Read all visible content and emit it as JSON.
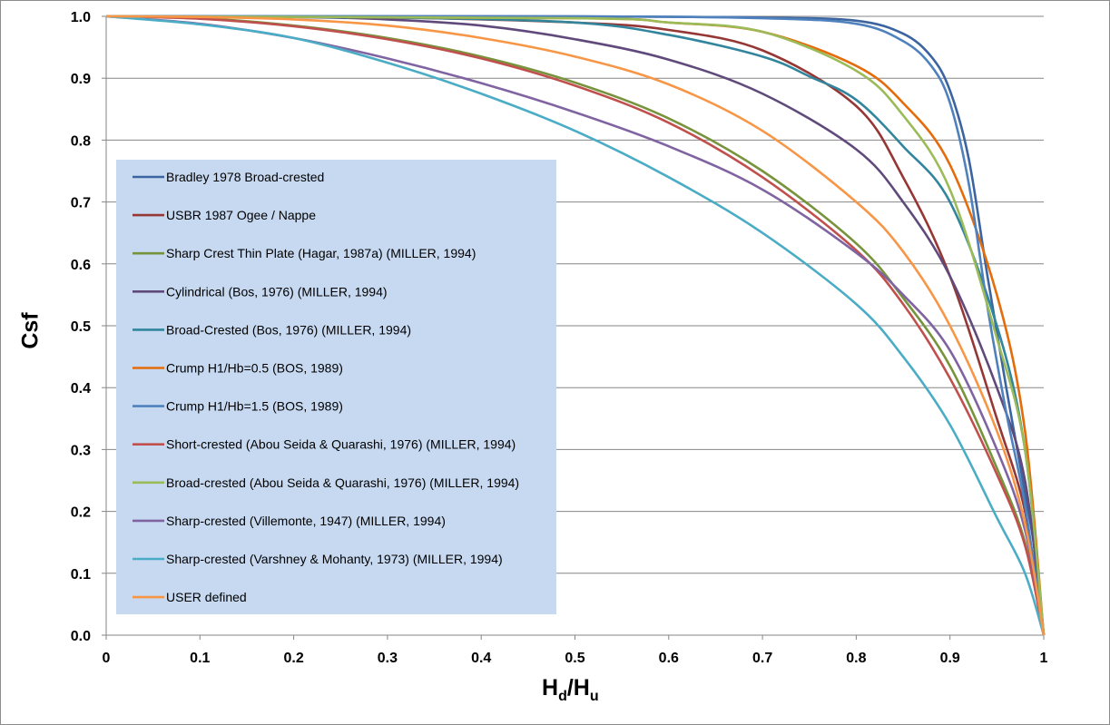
{
  "chart_data": {
    "type": "line",
    "title": "",
    "ylabel": "Csf",
    "xlabel": {
      "base1": "H",
      "sub1": "d",
      "sep": "/",
      "base2": "H",
      "sub2": "u"
    },
    "xlim": [
      0,
      1
    ],
    "ylim": [
      0,
      1
    ],
    "xticks": [
      "0",
      "0.1",
      "0.2",
      "0.3",
      "0.4",
      "0.5",
      "0.6",
      "0.7",
      "0.8",
      "0.9",
      "1"
    ],
    "yticks": [
      "0.0",
      "0.1",
      "0.2",
      "0.3",
      "0.4",
      "0.5",
      "0.6",
      "0.7",
      "0.8",
      "0.9",
      "1.0"
    ],
    "grid": "horizontal",
    "legend_placement": "center-left",
    "legend_bg": "#C6D9F1",
    "series": [
      {
        "name": "Bradley 1978 Broad-crested",
        "color": "#3B64A0",
        "points": [
          [
            0,
            1
          ],
          [
            0.5,
            1
          ],
          [
            0.7,
            0.998
          ],
          [
            0.8,
            0.993
          ],
          [
            0.85,
            0.972
          ],
          [
            0.88,
            0.935
          ],
          [
            0.9,
            0.88
          ],
          [
            0.92,
            0.77
          ],
          [
            0.94,
            0.58
          ],
          [
            0.96,
            0.4
          ],
          [
            0.98,
            0.23
          ],
          [
            0.99,
            0.14
          ],
          [
            1,
            0
          ]
        ]
      },
      {
        "name": "USBR 1987 Ogee / Nappe",
        "color": "#953735",
        "points": [
          [
            0,
            1
          ],
          [
            0.3,
            0.998
          ],
          [
            0.5,
            0.99
          ],
          [
            0.6,
            0.978
          ],
          [
            0.7,
            0.945
          ],
          [
            0.8,
            0.855
          ],
          [
            0.85,
            0.74
          ],
          [
            0.9,
            0.58
          ],
          [
            0.95,
            0.35
          ],
          [
            0.98,
            0.2
          ],
          [
            1,
            0
          ]
        ]
      },
      {
        "name": "Sharp Crest Thin Plate (Hagar, 1987a) (MILLER, 1994)",
        "color": "#77933C",
        "points": [
          [
            0,
            1
          ],
          [
            0.1,
            0.997
          ],
          [
            0.2,
            0.985
          ],
          [
            0.3,
            0.965
          ],
          [
            0.4,
            0.935
          ],
          [
            0.5,
            0.893
          ],
          [
            0.6,
            0.835
          ],
          [
            0.7,
            0.75
          ],
          [
            0.8,
            0.633
          ],
          [
            0.85,
            0.545
          ],
          [
            0.9,
            0.435
          ],
          [
            0.95,
            0.27
          ],
          [
            0.98,
            0.15
          ],
          [
            1,
            0
          ]
        ]
      },
      {
        "name": "Cylindrical (Bos, 1976) (MILLER, 1994)",
        "color": "#604A7B",
        "points": [
          [
            0,
            1
          ],
          [
            0.2,
            0.999
          ],
          [
            0.3,
            0.995
          ],
          [
            0.4,
            0.985
          ],
          [
            0.5,
            0.963
          ],
          [
            0.6,
            0.93
          ],
          [
            0.7,
            0.875
          ],
          [
            0.8,
            0.785
          ],
          [
            0.85,
            0.7
          ],
          [
            0.9,
            0.58
          ],
          [
            0.95,
            0.4
          ],
          [
            0.98,
            0.25
          ],
          [
            1,
            0
          ]
        ]
      },
      {
        "name": "Broad-Crested (Bos, 1976) (MILLER, 1994)",
        "color": "#31859C",
        "points": [
          [
            0,
            1
          ],
          [
            0.3,
            0.998
          ],
          [
            0.5,
            0.99
          ],
          [
            0.6,
            0.97
          ],
          [
            0.7,
            0.935
          ],
          [
            0.75,
            0.903
          ],
          [
            0.8,
            0.865
          ],
          [
            0.85,
            0.79
          ],
          [
            0.9,
            0.7
          ],
          [
            0.95,
            0.5
          ],
          [
            0.98,
            0.3
          ],
          [
            1,
            0
          ]
        ]
      },
      {
        "name": "Crump H1/Hb=0.5 (BOS, 1989)",
        "color": "#E46C0A",
        "points": [
          [
            0,
            1
          ],
          [
            0.5,
            0.997
          ],
          [
            0.6,
            0.99
          ],
          [
            0.7,
            0.975
          ],
          [
            0.8,
            0.92
          ],
          [
            0.85,
            0.86
          ],
          [
            0.9,
            0.76
          ],
          [
            0.95,
            0.55
          ],
          [
            0.98,
            0.33
          ],
          [
            1,
            0
          ]
        ]
      },
      {
        "name": "Crump H1/Hb=1.5 (BOS, 1989)",
        "color": "#4F81BD",
        "points": [
          [
            0,
            1
          ],
          [
            0.5,
            1
          ],
          [
            0.7,
            0.997
          ],
          [
            0.8,
            0.988
          ],
          [
            0.85,
            0.96
          ],
          [
            0.88,
            0.92
          ],
          [
            0.9,
            0.86
          ],
          [
            0.92,
            0.73
          ],
          [
            0.94,
            0.53
          ],
          [
            0.96,
            0.36
          ],
          [
            0.98,
            0.21
          ],
          [
            1,
            0
          ]
        ]
      },
      {
        "name": "Short-crested (Abou Seida & Quarashi, 1976) (MILLER, 1994)",
        "color": "#C0504D",
        "points": [
          [
            0,
            1
          ],
          [
            0.1,
            0.996
          ],
          [
            0.2,
            0.984
          ],
          [
            0.3,
            0.963
          ],
          [
            0.4,
            0.932
          ],
          [
            0.5,
            0.888
          ],
          [
            0.6,
            0.828
          ],
          [
            0.7,
            0.74
          ],
          [
            0.8,
            0.622
          ],
          [
            0.85,
            0.535
          ],
          [
            0.9,
            0.415
          ],
          [
            0.95,
            0.26
          ],
          [
            0.98,
            0.145
          ],
          [
            1,
            0
          ]
        ]
      },
      {
        "name": "Broad-crested (Abou Seida & Quarashi, 1976) (MILLER, 1994)",
        "color": "#9BBB59",
        "points": [
          [
            0,
            1
          ],
          [
            0.5,
            0.997
          ],
          [
            0.6,
            0.99
          ],
          [
            0.7,
            0.975
          ],
          [
            0.8,
            0.912
          ],
          [
            0.85,
            0.84
          ],
          [
            0.9,
            0.72
          ],
          [
            0.95,
            0.48
          ],
          [
            0.98,
            0.3
          ],
          [
            1,
            0
          ]
        ]
      },
      {
        "name": "Sharp-crested (Villemonte, 1947) (MILLER, 1994)",
        "color": "#8064A2",
        "points": [
          [
            0,
            1
          ],
          [
            0.1,
            0.988
          ],
          [
            0.2,
            0.965
          ],
          [
            0.3,
            0.932
          ],
          [
            0.4,
            0.892
          ],
          [
            0.5,
            0.845
          ],
          [
            0.6,
            0.79
          ],
          [
            0.7,
            0.72
          ],
          [
            0.8,
            0.618
          ],
          [
            0.85,
            0.55
          ],
          [
            0.9,
            0.46
          ],
          [
            0.95,
            0.3
          ],
          [
            0.98,
            0.17
          ],
          [
            1,
            0
          ]
        ]
      },
      {
        "name": "Sharp-crested (Varshney & Mohanty, 1973) (MILLER, 1994)",
        "color": "#4BACC6",
        "points": [
          [
            0,
            1
          ],
          [
            0.1,
            0.987
          ],
          [
            0.2,
            0.965
          ],
          [
            0.3,
            0.925
          ],
          [
            0.4,
            0.875
          ],
          [
            0.5,
            0.815
          ],
          [
            0.6,
            0.74
          ],
          [
            0.7,
            0.65
          ],
          [
            0.8,
            0.535
          ],
          [
            0.85,
            0.45
          ],
          [
            0.9,
            0.34
          ],
          [
            0.95,
            0.19
          ],
          [
            0.98,
            0.1
          ],
          [
            1,
            0
          ]
        ]
      },
      {
        "name": "USER defined",
        "color": "#F79646",
        "points": [
          [
            0,
            1
          ],
          [
            0.1,
            0.999
          ],
          [
            0.2,
            0.995
          ],
          [
            0.3,
            0.985
          ],
          [
            0.4,
            0.965
          ],
          [
            0.5,
            0.935
          ],
          [
            0.6,
            0.89
          ],
          [
            0.7,
            0.815
          ],
          [
            0.8,
            0.7
          ],
          [
            0.85,
            0.62
          ],
          [
            0.9,
            0.5
          ],
          [
            0.95,
            0.33
          ],
          [
            0.98,
            0.18
          ],
          [
            1,
            0
          ]
        ]
      }
    ]
  }
}
